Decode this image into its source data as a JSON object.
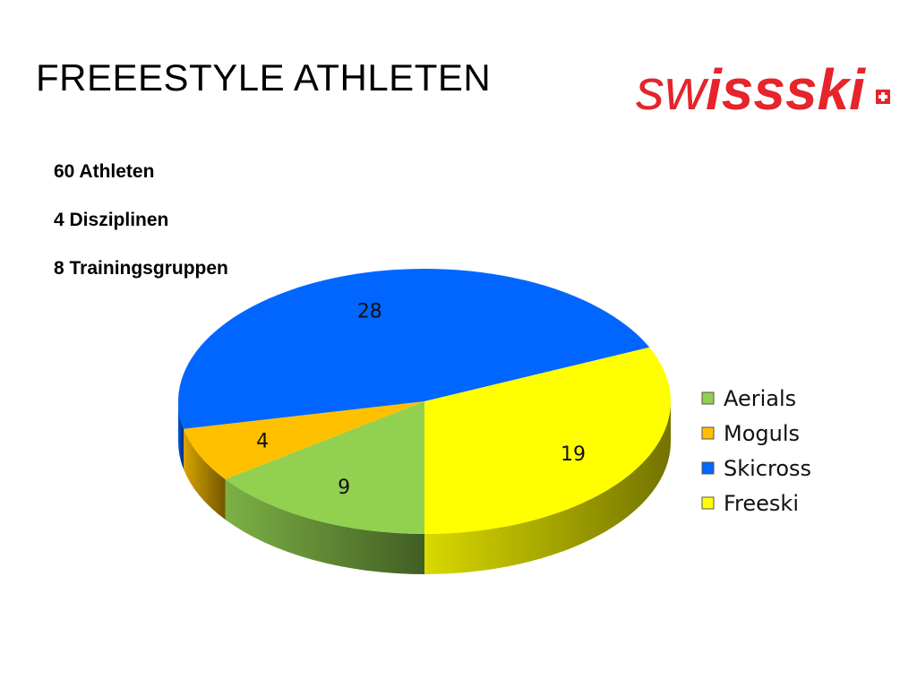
{
  "page": {
    "title": "FREEESTYLE ATHLETEN",
    "facts": [
      "60 Athleten",
      "4 Disziplinen",
      "8 Trainingsgruppen"
    ]
  },
  "logo": {
    "text": "swissski",
    "color": "#e5242b"
  },
  "chart_data": {
    "type": "pie",
    "style": "3d",
    "legend_position": "right",
    "slices": [
      {
        "label": "Aerials",
        "value": 9,
        "color": "#92d050"
      },
      {
        "label": "Moguls",
        "value": 4,
        "color": "#ffc000"
      },
      {
        "label": "Skicross",
        "value": 28,
        "color": "#0066ff"
      },
      {
        "label": "Freeski",
        "value": 19,
        "color": "#ffff00"
      }
    ]
  }
}
